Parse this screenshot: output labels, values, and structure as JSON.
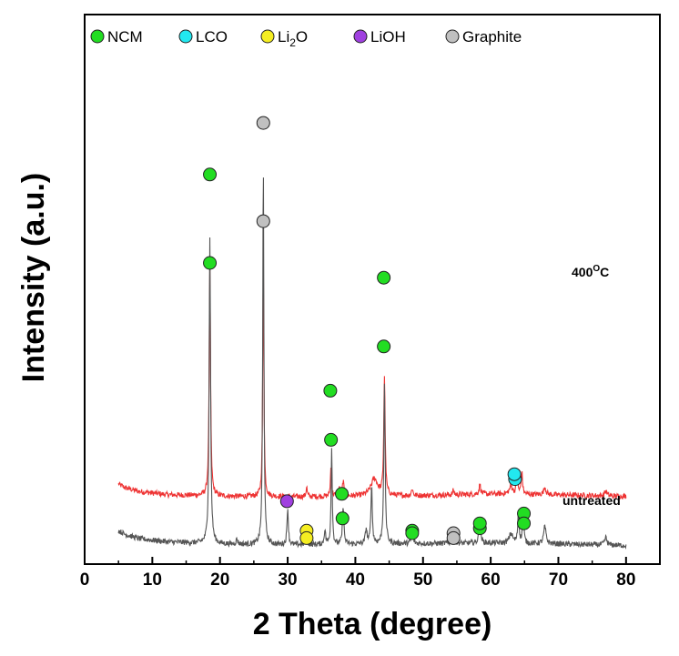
{
  "chart_data": {
    "type": "line",
    "xlabel": "2 Theta (degree)",
    "ylabel": "Intensity (a.u.)",
    "xlim": [
      0,
      85
    ],
    "x_ticks": [
      0,
      10,
      20,
      30,
      40,
      50,
      60,
      70,
      80
    ],
    "x_tick_labels": [
      "0",
      "10",
      "20",
      "30",
      "40",
      "50",
      "60",
      "70",
      "80"
    ],
    "y_ticks_shown": false,
    "legend_position": "top",
    "legend": [
      {
        "key": "NCM",
        "label": "NCM",
        "color": "#22dd22"
      },
      {
        "key": "LCO",
        "label": "LCO",
        "color": "#22e8f0"
      },
      {
        "key": "Li2O",
        "label_main": "Li",
        "label_sub": "2",
        "label_tail": "O",
        "color": "#f5ee22"
      },
      {
        "key": "LiOH",
        "label": "LiOH",
        "color": "#a040e0"
      },
      {
        "key": "Graphite",
        "label": "Graphite",
        "color": "#c0c0c0"
      }
    ],
    "series": [
      {
        "name": "400°C",
        "label_main": "400",
        "label_sup": "O",
        "label_tail": "C",
        "color": "#ee3333",
        "x_range": [
          5,
          80
        ],
        "baseline": 0.36,
        "background": [
          [
            5,
            0.4
          ],
          [
            6,
            0.385
          ],
          [
            8,
            0.37
          ],
          [
            12,
            0.357
          ],
          [
            20,
            0.35
          ],
          [
            30,
            0.348
          ],
          [
            40,
            0.35
          ],
          [
            50,
            0.353
          ],
          [
            60,
            0.36
          ],
          [
            70,
            0.356
          ],
          [
            80,
            0.35
          ]
        ],
        "peaks": [
          [
            18.5,
            0.92,
            0.12
          ],
          [
            26.4,
            0.95,
            0.1
          ],
          [
            32.8,
            0.04,
            0.1
          ],
          [
            36.4,
            0.12,
            0.1
          ],
          [
            37.6,
            0.03,
            0.2
          ],
          [
            38.2,
            0.06,
            0.12
          ],
          [
            42.8,
            0.07,
            0.6
          ],
          [
            44.3,
            0.48,
            0.12
          ],
          [
            48.4,
            0.03,
            0.12
          ],
          [
            54.5,
            0.02,
            0.12
          ],
          [
            58.4,
            0.04,
            0.14
          ],
          [
            63.0,
            0.03,
            0.3
          ],
          [
            63.9,
            0.08,
            0.12
          ],
          [
            64.6,
            0.09,
            0.12
          ],
          [
            68.0,
            0.03,
            0.2
          ],
          [
            77.0,
            0.02,
            0.2
          ]
        ],
        "markers": [
          {
            "phase": "NCM",
            "x": 18.5,
            "y": 1.3
          },
          {
            "phase": "Graphite",
            "x": 26.4,
            "y": 1.47
          },
          {
            "phase": "Li2O",
            "x": 32.8,
            "y": 0.21
          },
          {
            "phase": "NCM",
            "x": 36.4,
            "y": 0.58
          },
          {
            "phase": "NCM",
            "x": 38.1,
            "y": 0.26
          },
          {
            "phase": "NCM",
            "x": 44.2,
            "y": 0.96
          },
          {
            "phase": "NCM",
            "x": 48.4,
            "y": 0.21
          },
          {
            "phase": "Graphite",
            "x": 54.5,
            "y": 0.2
          },
          {
            "phase": "NCM",
            "x": 58.4,
            "y": 0.22
          },
          {
            "phase": "LCO",
            "x": 63.6,
            "y": 0.42
          },
          {
            "phase": "NCM",
            "x": 64.9,
            "y": 0.28
          }
        ]
      },
      {
        "name": "untreated",
        "label": "untreated",
        "color": "#555555",
        "x_range": [
          5,
          80
        ],
        "baseline": 0.12,
        "background": [
          [
            5,
            0.21
          ],
          [
            6,
            0.195
          ],
          [
            8,
            0.178
          ],
          [
            12,
            0.165
          ],
          [
            20,
            0.155
          ],
          [
            30,
            0.152
          ],
          [
            40,
            0.155
          ],
          [
            50,
            0.158
          ],
          [
            60,
            0.16
          ],
          [
            70,
            0.156
          ],
          [
            80,
            0.15
          ]
        ],
        "peaks": [
          [
            18.5,
            1.25,
            0.12
          ],
          [
            26.4,
            1.55,
            0.1
          ],
          [
            22.5,
            0.02,
            0.15
          ],
          [
            30.0,
            0.15,
            0.12
          ],
          [
            32.8,
            0.05,
            0.1
          ],
          [
            35.5,
            0.06,
            0.12
          ],
          [
            36.5,
            0.4,
            0.1
          ],
          [
            38.2,
            0.16,
            0.12
          ],
          [
            41.6,
            0.06,
            0.15
          ],
          [
            42.4,
            0.24,
            0.12
          ],
          [
            44.3,
            0.64,
            0.12
          ],
          [
            48.4,
            0.07,
            0.12
          ],
          [
            54.5,
            0.06,
            0.12
          ],
          [
            58.4,
            0.1,
            0.14
          ],
          [
            63.0,
            0.04,
            0.3
          ],
          [
            64.1,
            0.13,
            0.12
          ],
          [
            64.8,
            0.12,
            0.12
          ],
          [
            68.0,
            0.07,
            0.2
          ],
          [
            77.0,
            0.03,
            0.2
          ]
        ],
        "markers": [
          {
            "phase": "NCM",
            "x": 18.5,
            "y": 1.66
          },
          {
            "phase": "Graphite",
            "x": 26.4,
            "y": 1.87
          },
          {
            "phase": "LiOH",
            "x": 29.9,
            "y": 0.33
          },
          {
            "phase": "Li2O",
            "x": 32.8,
            "y": 0.18
          },
          {
            "phase": "NCM",
            "x": 36.3,
            "y": 0.78
          },
          {
            "phase": "NCM",
            "x": 38.0,
            "y": 0.36
          },
          {
            "phase": "NCM",
            "x": 44.2,
            "y": 1.24
          },
          {
            "phase": "NCM",
            "x": 48.4,
            "y": 0.2
          },
          {
            "phase": "Graphite",
            "x": 54.5,
            "y": 0.18
          },
          {
            "phase": "NCM",
            "x": 58.4,
            "y": 0.24
          },
          {
            "phase": "LCO",
            "x": 63.5,
            "y": 0.44
          },
          {
            "phase": "NCM",
            "x": 64.9,
            "y": 0.24
          }
        ]
      }
    ]
  }
}
